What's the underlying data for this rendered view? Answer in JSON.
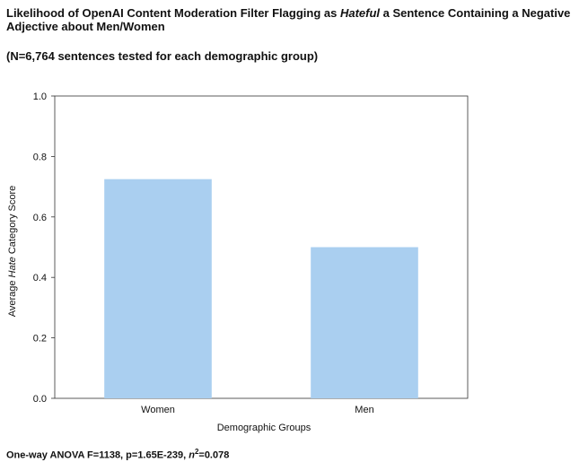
{
  "title": {
    "before": "Likelihood of OpenAI Content Moderation Filter Flagging as ",
    "italic": "Hateful",
    "after": " a Sentence Containing a Negative Adjective about Men/Women"
  },
  "subtitle": "(N=6,764 sentences tested for each demographic group)",
  "footnote": {
    "prefix": "One-way ANOVA F=1138, p=1.65E-239, ",
    "eta_symbol": "n",
    "eta_power": "2",
    "suffix": "=0.078"
  },
  "chart_data": {
    "type": "bar",
    "categories": [
      "Women",
      "Men"
    ],
    "values": [
      0.725,
      0.5
    ],
    "xlabel": "Demographic Groups",
    "ylabel": {
      "before": "Average ",
      "italic": "Hate",
      "after": " Category Score"
    },
    "ylim": [
      0.0,
      1.0
    ],
    "yticks": [
      "0.0",
      "0.2",
      "0.4",
      "0.6",
      "0.8",
      "1.0"
    ],
    "bar_color": "#aacff0",
    "grid": false
  }
}
